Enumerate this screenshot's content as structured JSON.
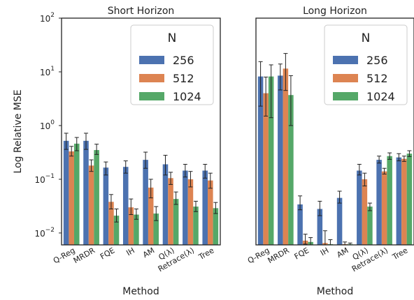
{
  "chart_data": {
    "type": "bar",
    "ylabel": "Log Relative MSE",
    "yscale": "log",
    "ylim": [
      0.006,
      100
    ],
    "yticks": [
      {
        "value": 0.01,
        "base": "10",
        "exp": "−2"
      },
      {
        "value": 0.1,
        "base": "10",
        "exp": "−1"
      },
      {
        "value": 1,
        "base": "10",
        "exp": "0"
      },
      {
        "value": 10,
        "base": "10",
        "exp": "1"
      },
      {
        "value": 100,
        "base": "10",
        "exp": "2"
      }
    ],
    "legend": {
      "title": "N",
      "placement": "top-right"
    },
    "series_meta": [
      {
        "name": "256",
        "color": "#4c72b0"
      },
      {
        "name": "512",
        "color": "#dd8452"
      },
      {
        "name": "1024",
        "color": "#55a868"
      }
    ],
    "categories": [
      "Q-Reg",
      "MRDR",
      "FQE",
      "IH",
      "AM",
      "Q(λ)",
      "Retrace(λ)",
      "Tree"
    ],
    "panels": [
      {
        "title": "Short Horizon",
        "xlabel": "Method",
        "series": [
          {
            "name": "256",
            "values": [
              0.52,
              0.52,
              0.165,
              0.17,
              0.23,
              0.19,
              0.145,
              0.145
            ],
            "err_low": [
              0.36,
              0.36,
              0.12,
              0.13,
              0.16,
              0.12,
              0.11,
              0.105
            ],
            "err_high": [
              0.72,
              0.72,
              0.21,
              0.22,
              0.32,
              0.28,
              0.19,
              0.19
            ]
          },
          {
            "name": "512",
            "values": [
              0.33,
              0.18,
              0.038,
              0.03,
              0.07,
              0.105,
              0.1,
              0.095
            ],
            "err_low": [
              0.27,
              0.14,
              0.028,
              0.022,
              0.045,
              0.08,
              0.072,
              0.068
            ],
            "err_high": [
              0.41,
              0.23,
              0.052,
              0.043,
              0.1,
              0.135,
              0.14,
              0.13
            ]
          },
          {
            "name": "1024",
            "values": [
              0.46,
              0.35,
              0.021,
              0.022,
              0.023,
              0.043,
              0.031,
              0.029
            ],
            "err_low": [
              0.34,
              0.29,
              0.016,
              0.018,
              0.017,
              0.034,
              0.025,
              0.023
            ],
            "err_high": [
              0.6,
              0.45,
              0.028,
              0.028,
              0.031,
              0.058,
              0.039,
              0.037
            ]
          }
        ]
      },
      {
        "title": "Long Horizon",
        "xlabel": "Method",
        "series": [
          {
            "name": "256",
            "values": [
              8.2,
              8.5,
              0.034,
              0.028,
              0.045,
              0.145,
              0.23,
              0.255
            ],
            "err_low": [
              2.3,
              4.6,
              0.027,
              0.021,
              0.036,
              0.12,
              0.2,
              0.22
            ],
            "err_high": [
              15.5,
              14.0,
              0.049,
              0.039,
              0.06,
              0.19,
              0.27,
              0.3
            ]
          },
          {
            "name": "512",
            "values": [
              4.0,
              11.5,
              0.0072,
              0.0065,
              0.0062,
              0.1,
              0.14,
              0.24
            ],
            "err_low": [
              1.5,
              4.5,
              0.0062,
              0.0058,
              0.006,
              0.075,
              0.125,
              0.215
            ],
            "err_high": [
              8.0,
              22.0,
              0.0095,
              0.011,
              0.0068,
              0.13,
              0.16,
              0.27
            ]
          },
          {
            "name": "1024",
            "values": [
              8.2,
              3.7,
              0.0068,
              0.0062,
              0.0062,
              0.031,
              0.27,
              0.3
            ],
            "err_low": [
              1.4,
              1.0,
              0.006,
              0.006,
              0.006,
              0.026,
              0.235,
              0.265
            ],
            "err_high": [
              13.5,
              8.5,
              0.0082,
              0.0075,
              0.0065,
              0.036,
              0.31,
              0.34
            ]
          }
        ]
      }
    ]
  }
}
